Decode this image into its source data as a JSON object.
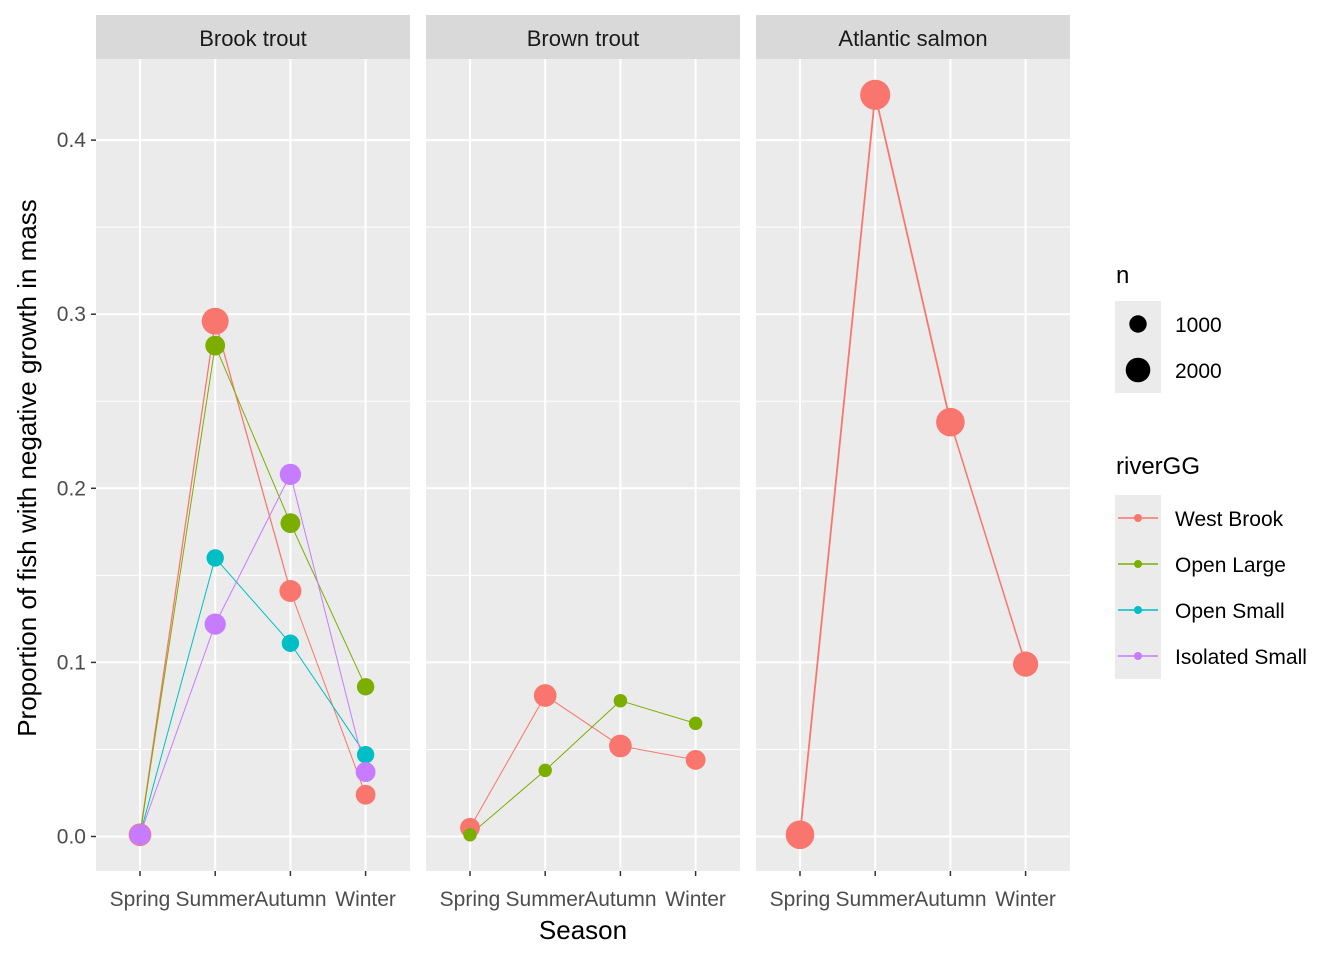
{
  "chart_data": {
    "type": "line",
    "x": [
      "Spring",
      "Summer",
      "Autumn",
      "Winter"
    ],
    "xlabel": "Season",
    "ylabel": "Proportion of fish with negative growth in mass",
    "ylim": [
      -0.02,
      0.44
    ],
    "yticks": [
      0.0,
      0.1,
      0.2,
      0.3,
      0.4
    ],
    "ytick_labels": [
      "0.0",
      "0.1",
      "0.2",
      "0.3",
      "0.4"
    ],
    "grid": true,
    "colors": {
      "West Brook": "#F8766D",
      "Open Large": "#7CAE00",
      "Open Small": "#00BFC4",
      "Isolated Small": "#C77CFF"
    },
    "size_legend": {
      "title": "n",
      "breaks": [
        1000,
        2000
      ],
      "labels": [
        "1000",
        "2000"
      ]
    },
    "color_legend": {
      "title": "riverGG",
      "entries": [
        "West Brook",
        "Open Large",
        "Open Small",
        "Isolated Small"
      ]
    },
    "legend_position": "right",
    "facets": [
      {
        "title": "Brook trout",
        "series": [
          {
            "name": "West Brook",
            "values": [
              0.001,
              0.296,
              0.141,
              0.024
            ],
            "n": [
              1700,
              2400,
              1600,
              1300
            ]
          },
          {
            "name": "Open Large",
            "values": [
              0.001,
              0.282,
              0.18,
              0.086
            ],
            "n": [
              1300,
              1300,
              1300,
              1000
            ]
          },
          {
            "name": "Open Small",
            "values": [
              0.001,
              0.16,
              0.111,
              0.047
            ],
            "n": [
              1000,
              1000,
              1000,
              1000
            ]
          },
          {
            "name": "Isolated Small",
            "values": [
              0.001,
              0.122,
              0.208,
              0.037
            ],
            "n": [
              1500,
              1500,
              1500,
              1300
            ]
          }
        ]
      },
      {
        "title": "Brown trout",
        "series": [
          {
            "name": "West Brook",
            "values": [
              0.005,
              0.081,
              0.052,
              0.044
            ],
            "n": [
              1300,
              1700,
              1700,
              1300
            ]
          },
          {
            "name": "Open Large",
            "values": [
              0.001,
              0.038,
              0.078,
              0.065
            ],
            "n": [
              600,
              600,
              600,
              600
            ]
          }
        ]
      },
      {
        "title": "Atlantic salmon",
        "series": [
          {
            "name": "West Brook",
            "values": [
              0.001,
              0.426,
              0.238,
              0.099
            ],
            "n": [
              2700,
              3000,
              2700,
              2100
            ]
          }
        ]
      }
    ]
  }
}
